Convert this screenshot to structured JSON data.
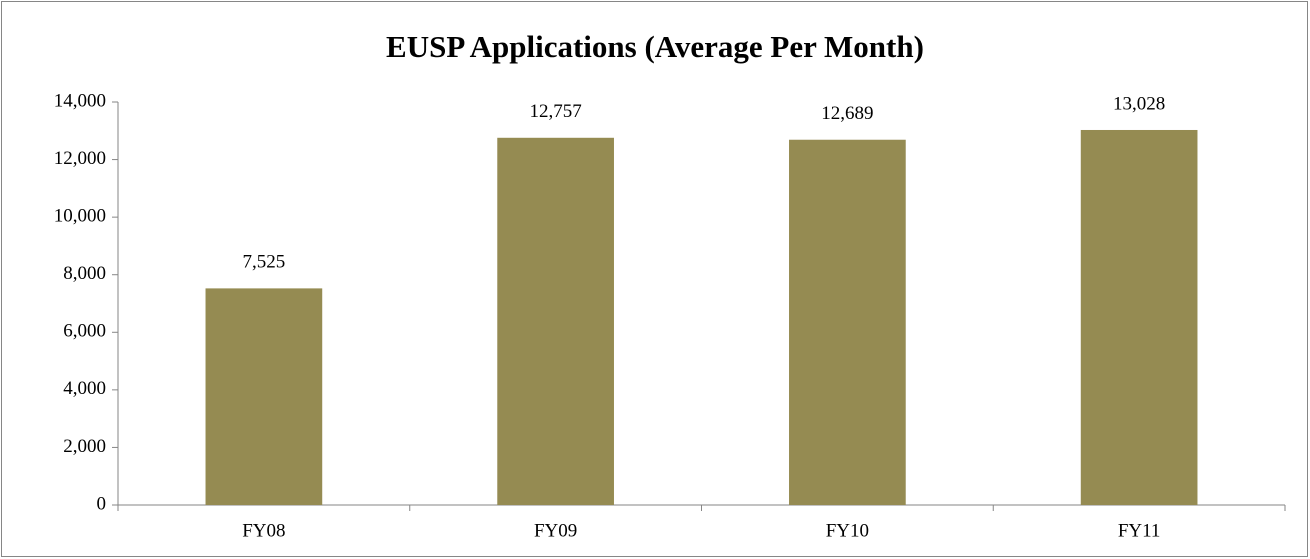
{
  "chart_data": {
    "type": "bar",
    "title": "EUSP Applications (Average Per Month)",
    "categories": [
      "FY08",
      "FY09",
      "FY10",
      "FY11"
    ],
    "values": [
      7525,
      12757,
      12689,
      13028
    ],
    "value_labels": [
      "7,525",
      "12,757",
      "12,689",
      "13,028"
    ],
    "color": "#958b52",
    "ylim": [
      0,
      14000
    ],
    "yticks": [
      0,
      {
        "value": 2000,
        "label": "2,000"
      },
      {
        "value": 4000,
        "label": "4,000"
      },
      {
        "value": 6000,
        "label": "6,000"
      },
      {
        "value": 8000,
        "label": "8,000"
      },
      {
        "value": 10000,
        "label": "10,000"
      },
      {
        "value": 12000,
        "label": "12,000"
      },
      {
        "value": 14000,
        "label": "14,000"
      }
    ],
    "grid": false
  }
}
